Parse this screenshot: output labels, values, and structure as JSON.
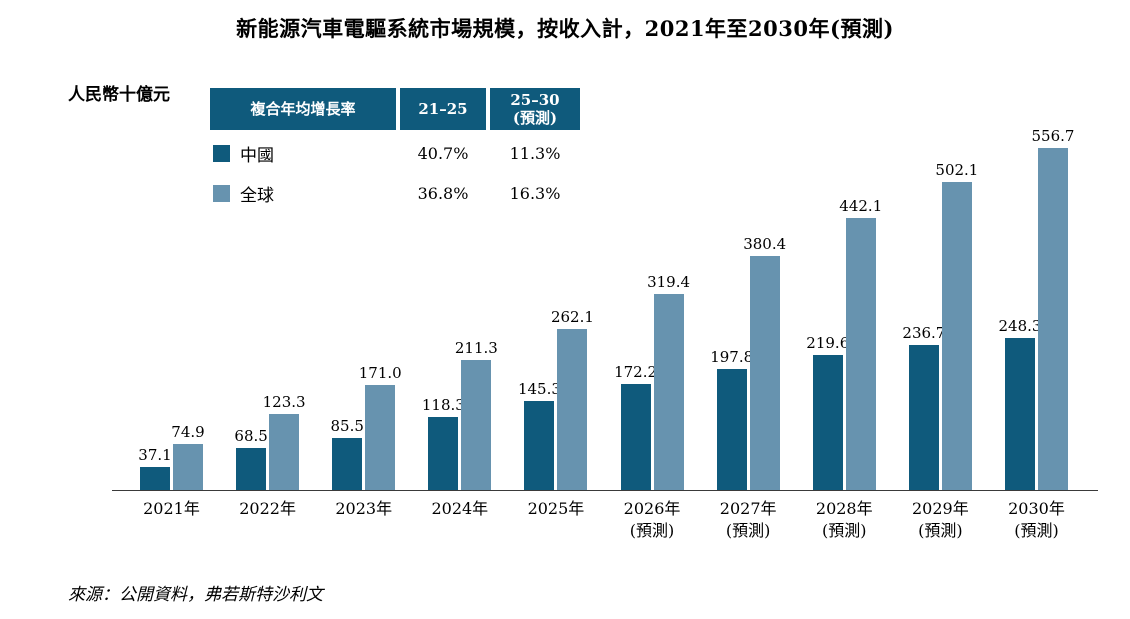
{
  "title": "新能源汽車電驅系統市場規模，按收入計，2021年至2030年(預測)",
  "unit_label": "人民幣十億元",
  "source": "來源：公開資料，弗若斯特沙利文",
  "colors": {
    "china": "#0f5a7c",
    "global": "#6793af"
  },
  "legend": {
    "header": [
      "複合年均增長率",
      "21–25",
      "25–30\n(預測)"
    ],
    "rows": [
      {
        "label": "中國",
        "cagr_21_25": "40.7%",
        "cagr_25_30": "11.3%"
      },
      {
        "label": "全球",
        "cagr_21_25": "36.8%",
        "cagr_25_30": "16.3%"
      }
    ]
  },
  "chart_data": {
    "type": "bar",
    "title": "新能源汽車電驅系統市場規模，按收入計，2021年至2030年(預測)",
    "ylabel": "人民幣十億元",
    "xlabel": "",
    "ylim": [
      0,
      580
    ],
    "grid": false,
    "legend_position": "top-left",
    "categories": [
      "2021年",
      "2022年",
      "2023年",
      "2024年",
      "2025年",
      "2026年\n(預測)",
      "2027年\n(預測)",
      "2028年\n(預測)",
      "2029年\n(預測)",
      "2030年\n(預測)"
    ],
    "series": [
      {
        "name": "中國",
        "color": "#0f5a7c",
        "values": [
          37.1,
          68.5,
          85.5,
          118.3,
          145.3,
          172.2,
          197.8,
          219.6,
          236.7,
          248.3
        ]
      },
      {
        "name": "全球",
        "color": "#6793af",
        "values": [
          74.9,
          123.3,
          171.0,
          211.3,
          262.1,
          319.4,
          380.4,
          442.1,
          502.1,
          556.7
        ]
      }
    ]
  }
}
